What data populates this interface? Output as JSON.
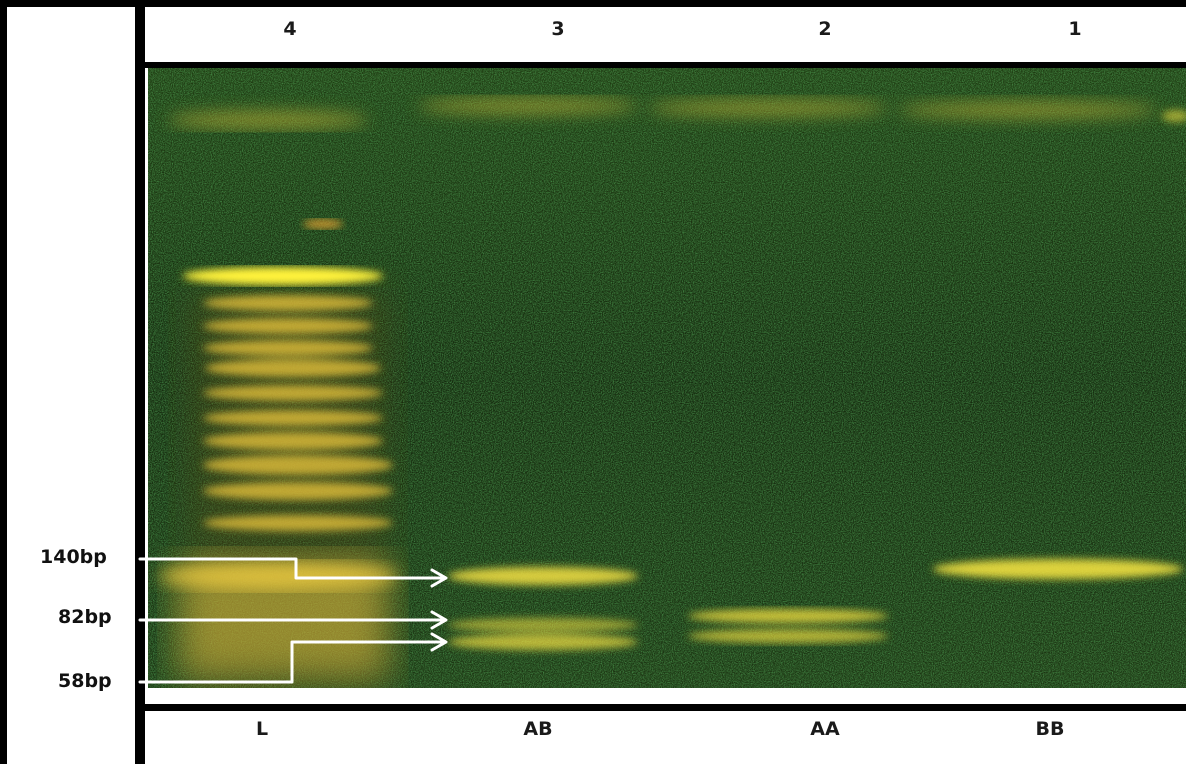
{
  "lanes": {
    "numbers": [
      "4",
      "3",
      "2",
      "1"
    ],
    "genotypes": [
      "L",
      "AB",
      "AA",
      "BB"
    ]
  },
  "markers": [
    "140bp",
    "82bp",
    "58bp"
  ],
  "colors": {
    "gel_background": "#1c3a10",
    "band": "#e8d840",
    "bright_band": "#fff23a",
    "arrow": "#ffffff"
  }
}
